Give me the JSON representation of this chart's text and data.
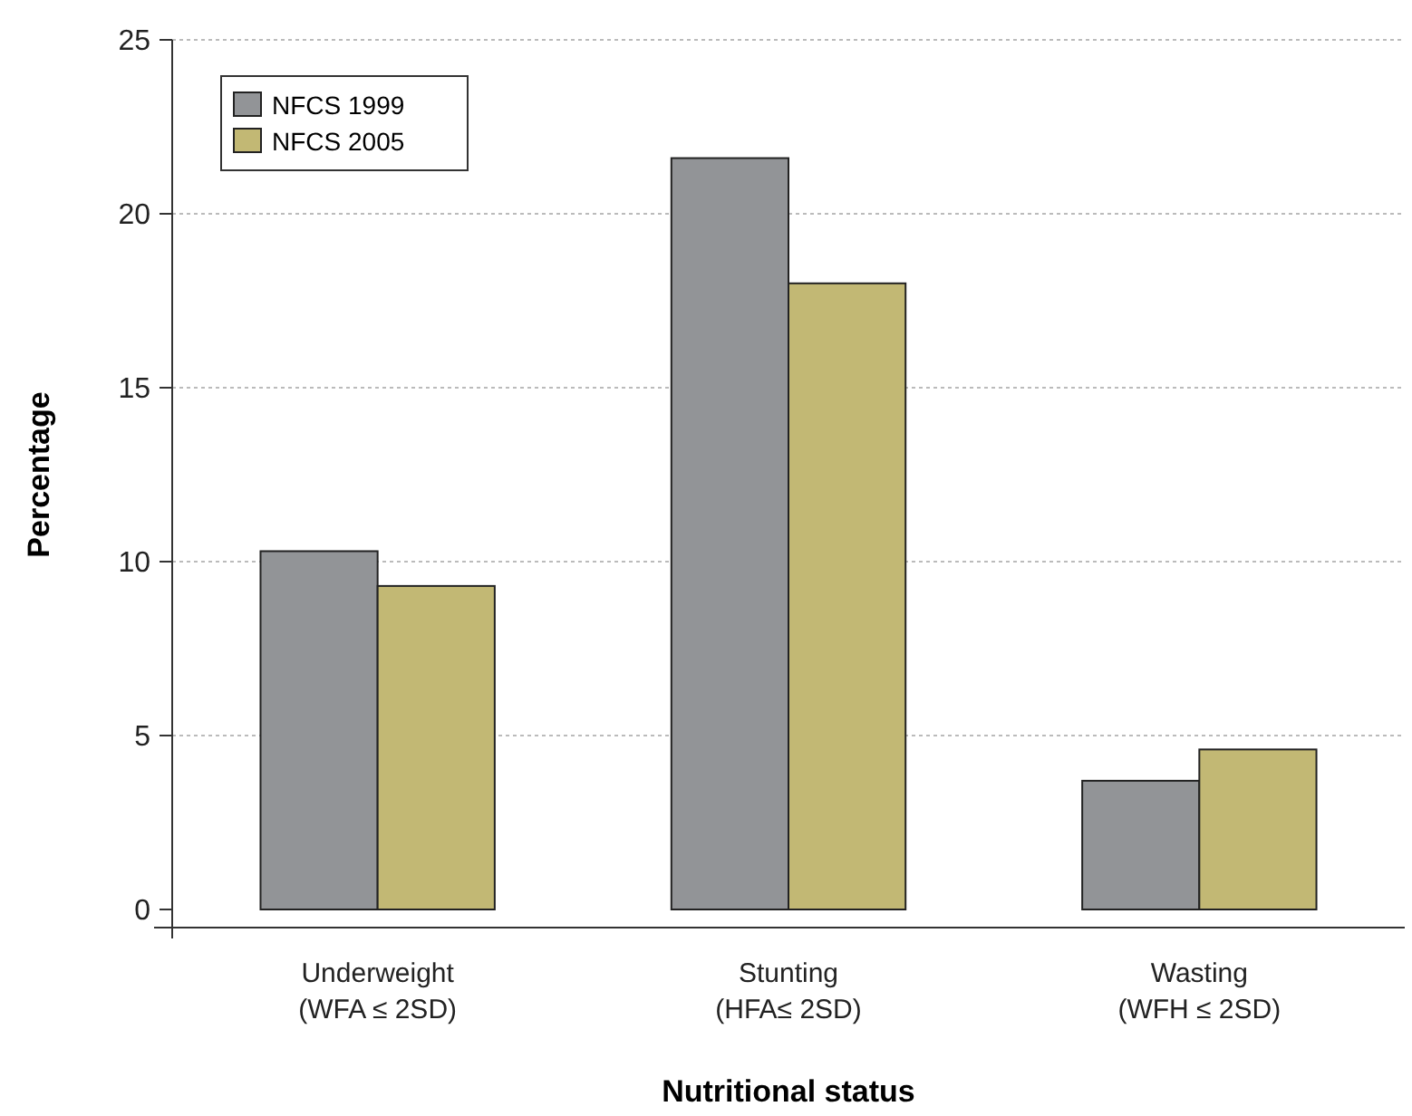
{
  "chart_data": {
    "type": "bar",
    "xlabel": "Nutritional status",
    "ylabel": "Percentage",
    "categories": [
      "Underweight\n(WFA ≤ 2SD)",
      "Stunting\n(HFA≤ 2SD)",
      "Wasting\n(WFH ≤ 2SD)"
    ],
    "series": [
      {
        "name": "NFCS 1999",
        "color": "#929497",
        "values": [
          10.3,
          21.6,
          3.7
        ]
      },
      {
        "name": "NFCS 2005",
        "color": "#c2b874",
        "values": [
          9.3,
          18.0,
          4.6
        ]
      }
    ],
    "ylim": [
      0,
      25
    ],
    "yticks": [
      0,
      5,
      10,
      15,
      20,
      25
    ],
    "grid": "y",
    "legend": "top left"
  }
}
